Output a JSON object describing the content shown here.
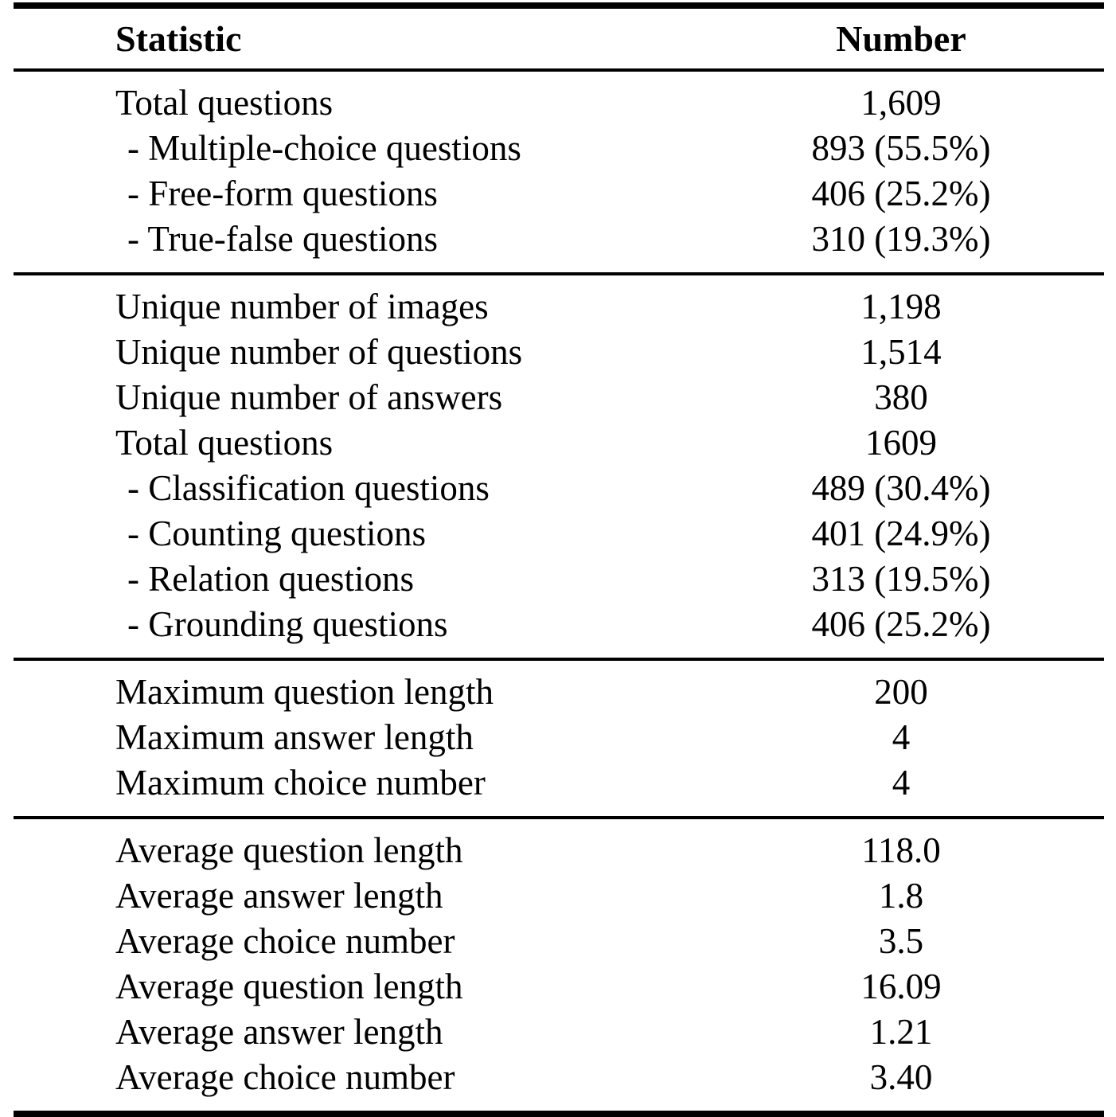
{
  "table": {
    "header": {
      "statistic": "Statistic",
      "number": "Number"
    },
    "sections": [
      {
        "rows": [
          {
            "label": "Total questions",
            "value": "1,609",
            "indent": false
          },
          {
            "label": "- Multiple-choice questions",
            "value": "893 (55.5%)",
            "indent": true
          },
          {
            "label": "- Free-form questions",
            "value": "406 (25.2%)",
            "indent": true
          },
          {
            "label": "- True-false questions",
            "value": "310 (19.3%)",
            "indent": true
          }
        ]
      },
      {
        "rows": [
          {
            "label": "Unique number of images",
            "value": "1,198",
            "indent": false
          },
          {
            "label": "Unique number of questions",
            "value": "1,514",
            "indent": false
          },
          {
            "label": "Unique number of answers",
            "value": "380",
            "indent": false
          },
          {
            "label": "Total questions",
            "value": "1609",
            "indent": false
          },
          {
            "label": "- Classification questions",
            "value": "489 (30.4%)",
            "indent": true
          },
          {
            "label": "- Counting questions",
            "value": "401 (24.9%)",
            "indent": true
          },
          {
            "label": "- Relation questions",
            "value": "313 (19.5%)",
            "indent": true
          },
          {
            "label": "- Grounding questions",
            "value": "406 (25.2%)",
            "indent": true
          }
        ]
      },
      {
        "rows": [
          {
            "label": "Maximum question length",
            "value": "200",
            "indent": false
          },
          {
            "label": "Maximum answer length",
            "value": "4",
            "indent": false
          },
          {
            "label": "Maximum choice number",
            "value": "4",
            "indent": false
          }
        ]
      },
      {
        "rows": [
          {
            "label": "Average question length",
            "value": "118.0",
            "indent": false
          },
          {
            "label": "Average answer length",
            "value": "1.8",
            "indent": false
          },
          {
            "label": "Average choice number",
            "value": "3.5",
            "indent": false
          },
          {
            "label": "Average question length",
            "value": "16.09",
            "indent": false
          },
          {
            "label": "Average answer length",
            "value": "1.21",
            "indent": false
          },
          {
            "label": "Average choice number",
            "value": "3.40",
            "indent": false
          }
        ]
      }
    ]
  }
}
